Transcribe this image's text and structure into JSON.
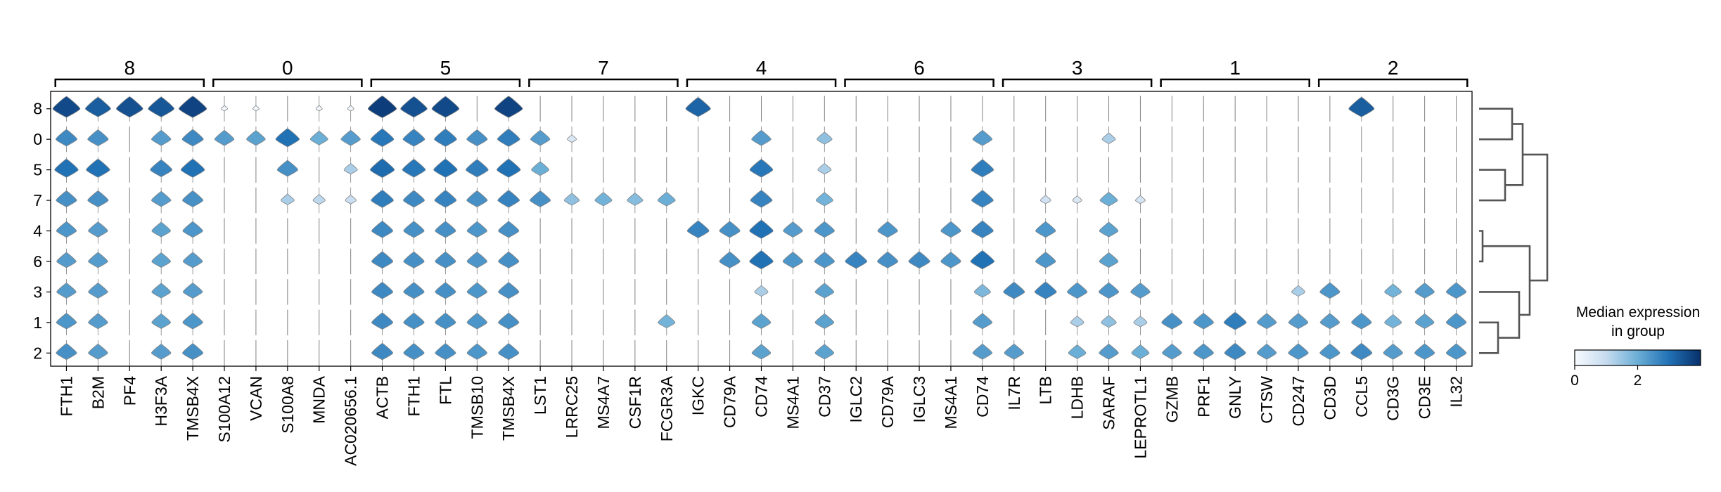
{
  "chart_data": {
    "type": "stacked_violin",
    "groups": [
      {
        "label": "8",
        "genes": [
          "FTH1",
          "B2M",
          "PF4",
          "H3F3A",
          "TMSB4X"
        ]
      },
      {
        "label": "0",
        "genes": [
          "S100A12",
          "VCAN",
          "S100A8",
          "MNDA",
          "AC020656.1"
        ]
      },
      {
        "label": "5",
        "genes": [
          "ACTB",
          "FTH1",
          "FTL",
          "TMSB10",
          "TMSB4X"
        ]
      },
      {
        "label": "7",
        "genes": [
          "LST1",
          "LRRC25",
          "MS4A7",
          "CSF1R",
          "FCGR3A"
        ]
      },
      {
        "label": "4",
        "genes": [
          "IGKC",
          "CD79A",
          "CD74",
          "MS4A1",
          "CD37"
        ]
      },
      {
        "label": "6",
        "genes": [
          "IGLC2",
          "CD79A",
          "IGLC3",
          "MS4A1",
          "CD74"
        ]
      },
      {
        "label": "3",
        "genes": [
          "IL7R",
          "LTB",
          "LDHB",
          "SARAF",
          "LEPROTL1"
        ]
      },
      {
        "label": "1",
        "genes": [
          "GZMB",
          "PRF1",
          "GNLY",
          "CTSW",
          "CD247"
        ]
      },
      {
        "label": "2",
        "genes": [
          "CD3D",
          "CCL5",
          "CD3G",
          "CD3E",
          "IL32"
        ]
      }
    ],
    "rows": [
      "8",
      "0",
      "5",
      "7",
      "4",
      "6",
      "3",
      "1",
      "2"
    ],
    "values": [
      [
        3.6,
        3.3,
        3.5,
        3.4,
        3.7,
        0.1,
        0.1,
        0.0,
        0.1,
        0.1,
        3.8,
        3.5,
        3.6,
        0.0,
        3.7,
        0.0,
        0.0,
        0.0,
        0.0,
        0.0,
        3.2,
        0.0,
        0.0,
        0.0,
        0.0,
        0.0,
        0.0,
        0.0,
        0.0,
        0.0,
        0.0,
        0.0,
        0.0,
        0.0,
        0.0,
        0.0,
        0.0,
        0.0,
        0.0,
        0.0,
        0.0,
        3.3,
        0.0,
        0.0,
        0.0
      ],
      [
        2.6,
        2.5,
        0.0,
        2.3,
        2.6,
        2.3,
        2.2,
        3.0,
        2.0,
        2.3,
        2.9,
        2.7,
        2.8,
        2.5,
        2.8,
        2.3,
        0.6,
        0.0,
        0.0,
        0.0,
        0.0,
        0.0,
        2.3,
        0.0,
        1.6,
        0.0,
        0.0,
        0.0,
        0.0,
        2.3,
        0.0,
        0.0,
        0.0,
        1.3,
        0.0,
        0.0,
        0.0,
        0.0,
        0.0,
        0.0,
        0.0,
        0.0,
        0.0,
        0.0,
        0.0
      ],
      [
        3.0,
        3.0,
        0.0,
        2.7,
        3.0,
        0.0,
        0.0,
        2.5,
        0.0,
        1.3,
        3.1,
        2.9,
        3.0,
        2.8,
        3.0,
        2.0,
        0.0,
        0.0,
        0.0,
        0.0,
        0.0,
        0.0,
        2.9,
        0.0,
        1.3,
        0.0,
        0.0,
        0.0,
        0.0,
        2.8,
        0.0,
        0.0,
        0.0,
        0.0,
        0.0,
        0.0,
        0.0,
        0.0,
        0.0,
        0.0,
        0.0,
        0.0,
        0.0,
        0.0,
        0.0
      ],
      [
        2.5,
        2.5,
        0.0,
        2.3,
        2.5,
        0.0,
        0.0,
        1.3,
        1.1,
        0.9,
        2.8,
        2.6,
        2.7,
        2.5,
        2.7,
        2.5,
        1.6,
        1.9,
        1.7,
        2.0,
        0.0,
        0.0,
        2.7,
        0.0,
        1.9,
        0.0,
        0.0,
        0.0,
        0.0,
        2.7,
        0.0,
        0.8,
        0.6,
        2.0,
        0.7,
        0.0,
        0.0,
        0.0,
        0.0,
        0.0,
        0.0,
        0.0,
        0.0,
        0.0,
        0.0
      ],
      [
        2.4,
        2.3,
        0.0,
        2.2,
        2.4,
        0.0,
        0.0,
        0.0,
        0.0,
        0.0,
        2.6,
        2.5,
        2.5,
        2.4,
        2.5,
        0.0,
        0.0,
        0.0,
        0.0,
        0.0,
        2.7,
        2.5,
        3.0,
        2.3,
        2.4,
        0.0,
        2.4,
        0.0,
        2.4,
        2.7,
        0.0,
        2.4,
        0.0,
        2.2,
        0.0,
        0.0,
        0.0,
        0.0,
        0.0,
        0.0,
        0.0,
        0.0,
        0.0,
        0.0,
        0.0
      ],
      [
        2.3,
        2.3,
        0.0,
        2.2,
        2.3,
        0.0,
        0.0,
        0.0,
        0.0,
        0.0,
        2.6,
        2.5,
        2.5,
        2.4,
        2.5,
        0.0,
        0.0,
        0.0,
        0.0,
        0.0,
        0.0,
        2.5,
        3.0,
        2.4,
        2.4,
        2.7,
        2.5,
        2.6,
        2.4,
        3.0,
        0.0,
        2.4,
        0.0,
        2.2,
        0.0,
        0.0,
        0.0,
        0.0,
        0.0,
        0.0,
        0.0,
        0.0,
        0.0,
        0.0,
        0.0
      ],
      [
        2.3,
        2.3,
        0.0,
        2.2,
        2.3,
        0.0,
        0.0,
        0.0,
        0.0,
        0.0,
        2.6,
        2.5,
        2.5,
        2.4,
        2.5,
        0.0,
        0.0,
        0.0,
        0.0,
        0.0,
        0.0,
        0.0,
        1.3,
        0.0,
        2.2,
        0.0,
        0.0,
        0.0,
        0.0,
        1.8,
        2.6,
        2.7,
        2.4,
        2.4,
        2.3,
        0.0,
        0.0,
        0.0,
        0.0,
        1.3,
        2.4,
        0.0,
        1.9,
        2.3,
        2.4
      ],
      [
        2.4,
        2.3,
        0.0,
        2.2,
        2.4,
        0.0,
        0.0,
        0.0,
        0.0,
        0.0,
        2.6,
        2.5,
        2.5,
        2.4,
        2.5,
        0.0,
        0.0,
        0.0,
        0.0,
        1.9,
        0.0,
        0.0,
        2.2,
        0.0,
        2.2,
        0.0,
        0.0,
        0.0,
        0.0,
        2.3,
        0.0,
        0.0,
        1.3,
        1.6,
        1.3,
        2.5,
        2.4,
        2.8,
        2.3,
        2.3,
        2.3,
        2.4,
        1.9,
        2.2,
        2.4
      ],
      [
        2.5,
        2.3,
        0.0,
        2.3,
        2.5,
        0.0,
        0.0,
        0.0,
        0.0,
        0.0,
        2.6,
        2.5,
        2.5,
        2.4,
        2.5,
        0.0,
        0.0,
        0.0,
        0.0,
        0.0,
        0.0,
        0.0,
        2.2,
        0.0,
        2.2,
        0.0,
        0.0,
        0.0,
        0.0,
        2.3,
        2.3,
        0.0,
        2.0,
        2.3,
        2.0,
        2.3,
        2.4,
        2.6,
        2.3,
        2.4,
        2.4,
        2.6,
        2.3,
        2.4,
        2.4
      ]
    ],
    "legend": {
      "title_line1": "Median expression",
      "title_line2": "in group",
      "ticks": [
        "0",
        "2"
      ],
      "range": [
        0,
        4
      ]
    },
    "colormap": [
      "#f7fbff",
      "#c6dbef",
      "#6baed6",
      "#2171b5",
      "#08306b"
    ],
    "dendrogram": {
      "leaves": [
        "8",
        "0",
        "5",
        "7",
        "4",
        "6",
        "3",
        "1",
        "2"
      ],
      "placement": "right"
    }
  }
}
